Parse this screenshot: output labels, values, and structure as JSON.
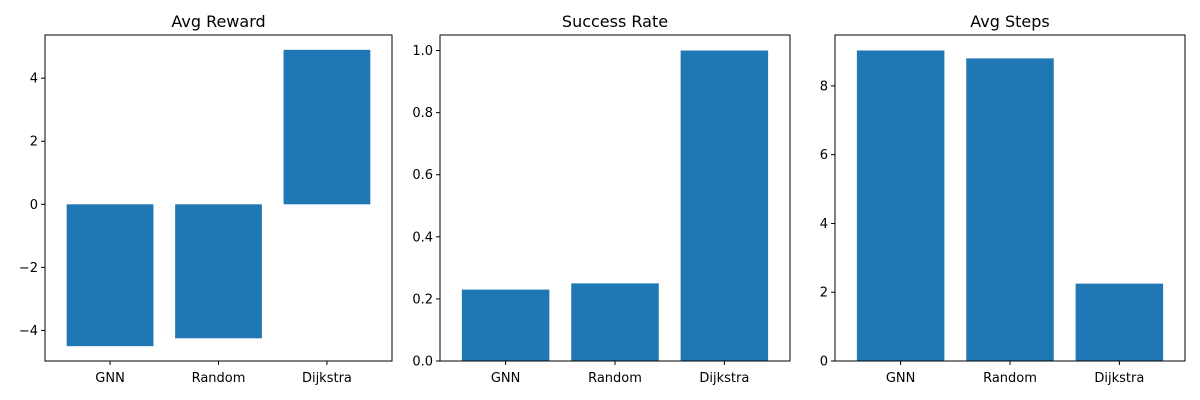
{
  "colors": {
    "bar": "#1f77b4",
    "axis": "#000000",
    "background": "#ffffff"
  },
  "chart_data": [
    {
      "type": "bar",
      "title": "Avg Reward",
      "xlabel": "",
      "ylabel": "",
      "categories": [
        "GNN",
        "Random",
        "Dijkstra"
      ],
      "values": [
        -4.5,
        -4.25,
        4.9
      ],
      "ylim": [
        -4.97,
        5.37
      ],
      "yticks": [
        -4,
        -2,
        0,
        2,
        4
      ],
      "ytick_labels": [
        "−4",
        "−2",
        "0",
        "2",
        "4"
      ],
      "grid": false,
      "legend": "none"
    },
    {
      "type": "bar",
      "title": "Success Rate",
      "xlabel": "",
      "ylabel": "",
      "categories": [
        "GNN",
        "Random",
        "Dijkstra"
      ],
      "values": [
        0.23,
        0.25,
        1.0
      ],
      "ylim": [
        0,
        1.05
      ],
      "yticks": [
        0,
        0.2,
        0.4,
        0.6,
        0.8,
        1.0
      ],
      "ytick_labels": [
        "0.0",
        "0.2",
        "0.4",
        "0.6",
        "0.8",
        "1.0"
      ],
      "grid": false,
      "legend": "none"
    },
    {
      "type": "bar",
      "title": "Avg Steps",
      "xlabel": "",
      "ylabel": "",
      "categories": [
        "GNN",
        "Random",
        "Dijkstra"
      ],
      "values": [
        9.03,
        8.8,
        2.25
      ],
      "ylim": [
        0,
        9.48
      ],
      "yticks": [
        0,
        2,
        4,
        6,
        8
      ],
      "ytick_labels": [
        "0",
        "2",
        "4",
        "6",
        "8"
      ],
      "grid": false,
      "legend": "none"
    }
  ]
}
